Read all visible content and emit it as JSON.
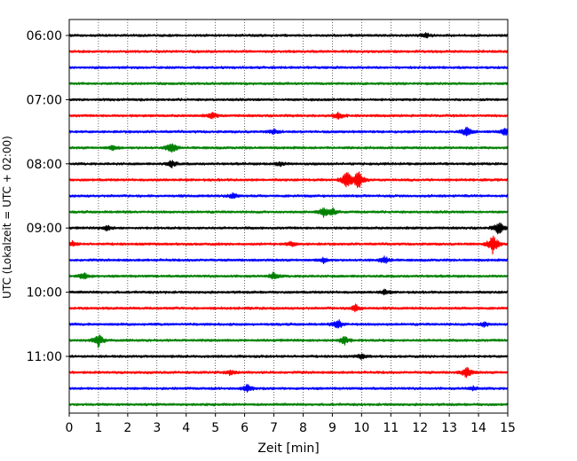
{
  "chart_data": {
    "type": "line",
    "title": "",
    "xlabel": "Zeit  [min]",
    "ylabel": "UTC (Lokalzeit = UTC + 02:00)",
    "xlim": [
      0,
      15
    ],
    "x_ticks": [
      "0",
      "1",
      "2",
      "3",
      "4",
      "5",
      "6",
      "7",
      "8",
      "9",
      "10",
      "11",
      "12",
      "13",
      "14",
      "15"
    ],
    "y_tick_labels": [
      "06:00",
      "07:00",
      "08:00",
      "09:00",
      "10:00",
      "11:00"
    ],
    "grid": "vertical dotted",
    "colors": [
      "#000000",
      "#ff0000",
      "#0000ff",
      "#008000"
    ],
    "trace_interval_min": 15,
    "series": [
      {
        "start": "06:00",
        "color": "#000000",
        "events": [
          [
            12.2,
            0.4
          ]
        ]
      },
      {
        "start": "06:15",
        "color": "#ff0000",
        "events": []
      },
      {
        "start": "06:30",
        "color": "#0000ff",
        "events": []
      },
      {
        "start": "06:45",
        "color": "#008000",
        "events": []
      },
      {
        "start": "07:00",
        "color": "#000000",
        "events": []
      },
      {
        "start": "07:15",
        "color": "#ff0000",
        "events": [
          [
            4.9,
            0.5
          ],
          [
            9.2,
            0.6
          ]
        ]
      },
      {
        "start": "07:30",
        "color": "#0000ff",
        "events": [
          [
            7.0,
            0.4
          ],
          [
            13.6,
            0.8
          ],
          [
            14.9,
            0.6
          ]
        ]
      },
      {
        "start": "07:45",
        "color": "#008000",
        "events": [
          [
            1.5,
            0.4
          ],
          [
            3.5,
            1.0
          ]
        ]
      },
      {
        "start": "08:00",
        "color": "#000000",
        "events": [
          [
            3.5,
            0.6
          ],
          [
            7.2,
            0.4
          ]
        ]
      },
      {
        "start": "08:15",
        "color": "#ff0000",
        "events": [
          [
            9.5,
            1.6
          ],
          [
            9.9,
            1.6
          ]
        ]
      },
      {
        "start": "08:30",
        "color": "#0000ff",
        "events": [
          [
            5.6,
            0.5
          ]
        ]
      },
      {
        "start": "08:45",
        "color": "#008000",
        "events": [
          [
            8.7,
            0.8
          ],
          [
            9.0,
            0.6
          ]
        ]
      },
      {
        "start": "09:00",
        "color": "#000000",
        "events": [
          [
            1.3,
            0.4
          ],
          [
            14.7,
            1.2
          ]
        ]
      },
      {
        "start": "09:15",
        "color": "#ff0000",
        "events": [
          [
            0.1,
            0.4
          ],
          [
            7.6,
            0.4
          ],
          [
            14.5,
            1.8
          ]
        ]
      },
      {
        "start": "09:30",
        "color": "#0000ff",
        "events": [
          [
            8.7,
            0.4
          ],
          [
            10.8,
            0.6
          ]
        ]
      },
      {
        "start": "09:45",
        "color": "#008000",
        "events": [
          [
            0.5,
            0.6
          ],
          [
            7.0,
            0.6
          ]
        ]
      },
      {
        "start": "10:00",
        "color": "#000000",
        "events": [
          [
            10.8,
            0.4
          ]
        ]
      },
      {
        "start": "10:15",
        "color": "#ff0000",
        "events": [
          [
            9.8,
            0.6
          ]
        ]
      },
      {
        "start": "10:30",
        "color": "#0000ff",
        "events": [
          [
            9.2,
            0.8
          ],
          [
            14.2,
            0.4
          ]
        ]
      },
      {
        "start": "10:45",
        "color": "#008000",
        "events": [
          [
            1.0,
            1.2
          ],
          [
            9.4,
            0.8
          ]
        ]
      },
      {
        "start": "11:00",
        "color": "#000000",
        "events": [
          [
            10.0,
            0.4
          ]
        ]
      },
      {
        "start": "11:15",
        "color": "#ff0000",
        "events": [
          [
            5.5,
            0.4
          ],
          [
            13.6,
            1.0
          ]
        ]
      },
      {
        "start": "11:30",
        "color": "#0000ff",
        "events": [
          [
            6.1,
            0.6
          ],
          [
            13.8,
            0.3
          ]
        ]
      },
      {
        "start": "11:45",
        "color": "#008000",
        "events": []
      }
    ]
  }
}
